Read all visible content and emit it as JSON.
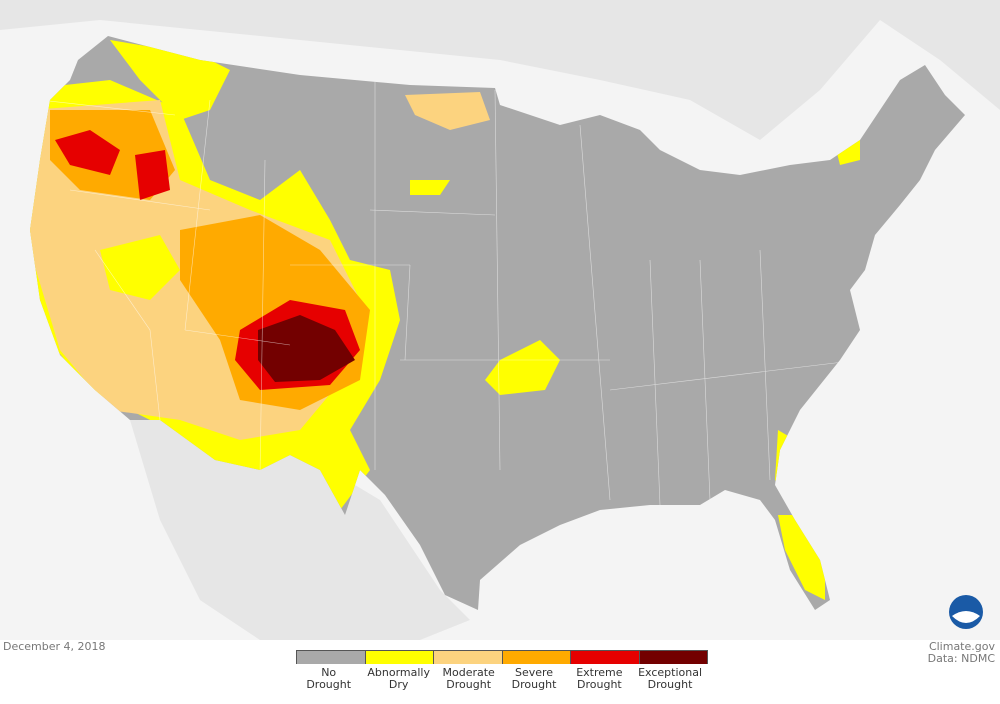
{
  "date": "December 4, 2018",
  "credits": [
    "Climate.gov",
    "Data: NDMC"
  ],
  "legend": [
    {
      "label": "No Drought",
      "color": "#a9a9a9"
    },
    {
      "label": "Abnormally Dry",
      "color": "#ffff00"
    },
    {
      "label": "Moderate Drought",
      "color": "#fcd37f"
    },
    {
      "label": "Severe Drought",
      "color": "#ffaa00"
    },
    {
      "label": "Extreme Drought",
      "color": "#e60000"
    },
    {
      "label": "Exceptional Drought",
      "color": "#730000"
    }
  ]
}
